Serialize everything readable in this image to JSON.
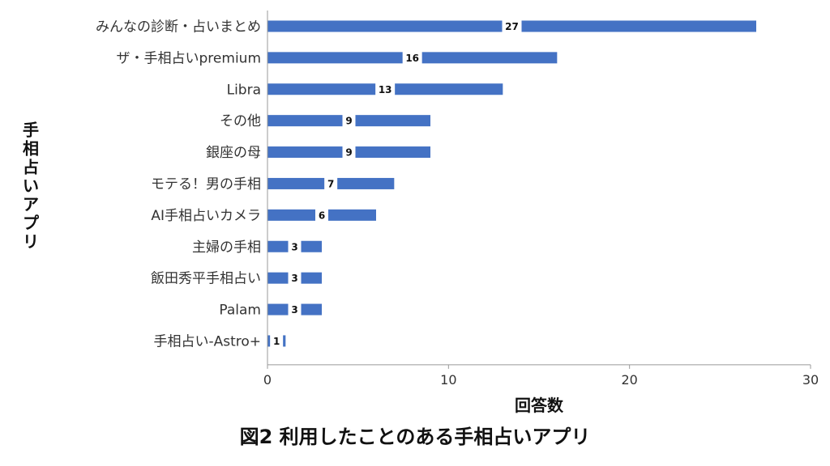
{
  "caption": "図2 利用したことのある手相占いアプリ",
  "chart_data": {
    "type": "bar",
    "orientation": "horizontal",
    "categories": [
      "みんなの診断・占いまとめ",
      "ザ・手相占いpremium",
      "Libra",
      "その他",
      "銀座の母",
      "モテる！男の手相",
      "AI手相占いカメラ",
      "主婦の手相",
      "飯田秀平手相占い",
      "Palam",
      "手相占い-Astro+"
    ],
    "values": [
      27,
      16,
      13,
      9,
      9,
      7,
      6,
      3,
      3,
      3,
      1
    ],
    "xlabel": "回答数",
    "ylabel": "手相占いアプリ",
    "xlim": [
      0,
      30
    ],
    "xticks": [
      0,
      10,
      20,
      30
    ],
    "bar_color": "#4472C4",
    "grid": false,
    "data_labels": true
  }
}
